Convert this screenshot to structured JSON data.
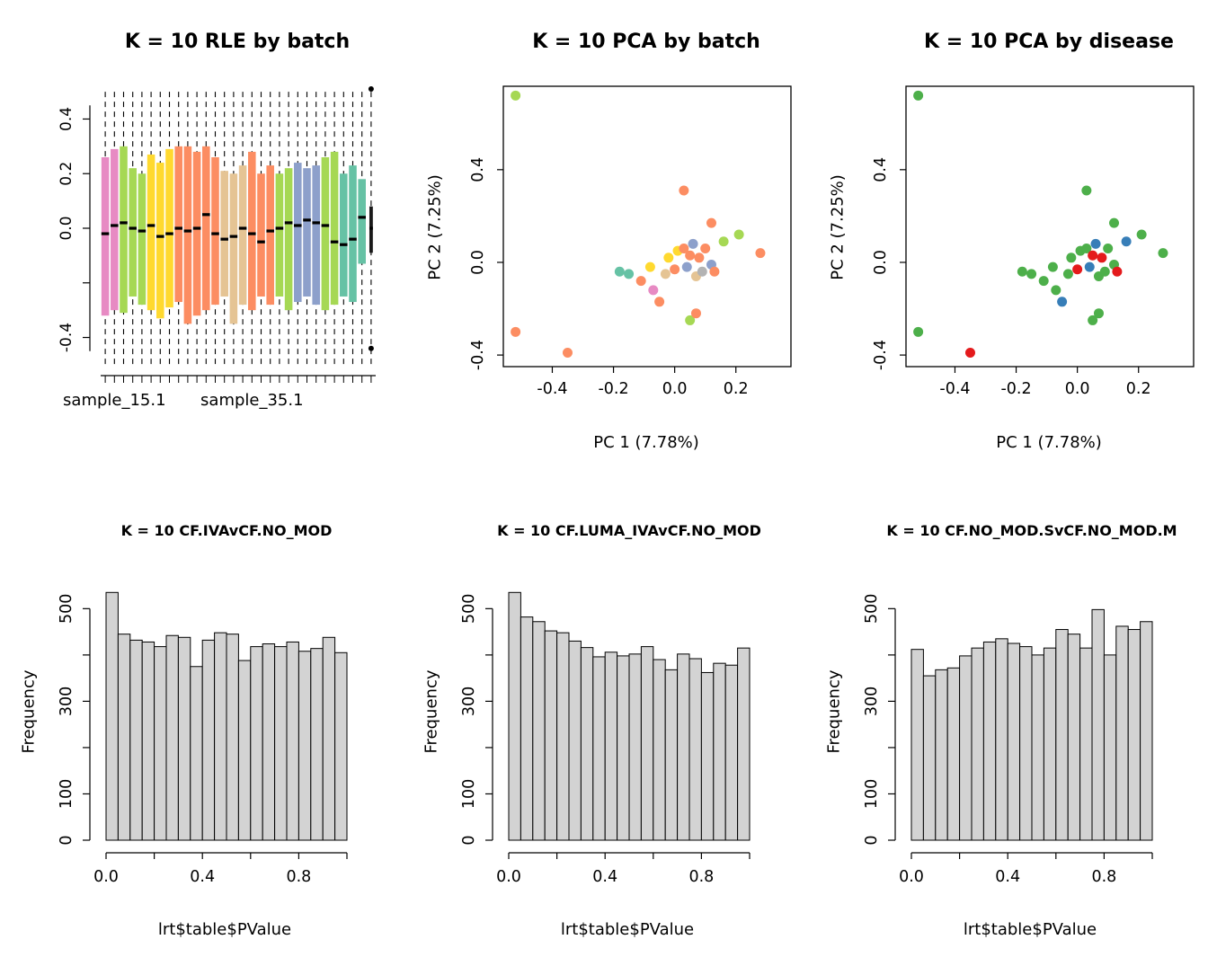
{
  "figure": {
    "background": "#ffffff",
    "histogram_bar_fill": "#d3d3d3",
    "histogram_bar_stroke": "#000000"
  },
  "pca_points": [
    {
      "x": -0.52,
      "y": 0.72,
      "batch": "#A6D854",
      "disease": "#4DAF4A"
    },
    {
      "x": -0.52,
      "y": -0.3,
      "batch": "#FC8D62",
      "disease": "#4DAF4A"
    },
    {
      "x": -0.35,
      "y": -0.39,
      "batch": "#FC8D62",
      "disease": "#E41A1C"
    },
    {
      "x": 0.03,
      "y": 0.31,
      "batch": "#FC8D62",
      "disease": "#4DAF4A"
    },
    {
      "x": 0.12,
      "y": 0.17,
      "batch": "#FC8D62",
      "disease": "#4DAF4A"
    },
    {
      "x": 0.21,
      "y": 0.12,
      "batch": "#A6D854",
      "disease": "#4DAF4A"
    },
    {
      "x": 0.28,
      "y": 0.04,
      "batch": "#FC8D62",
      "disease": "#4DAF4A"
    },
    {
      "x": 0.05,
      "y": -0.25,
      "batch": "#A6D854",
      "disease": "#4DAF4A"
    },
    {
      "x": -0.18,
      "y": -0.04,
      "batch": "#66C2A5",
      "disease": "#4DAF4A"
    },
    {
      "x": -0.15,
      "y": -0.05,
      "batch": "#66C2A5",
      "disease": "#4DAF4A"
    },
    {
      "x": -0.11,
      "y": -0.08,
      "batch": "#FC8D62",
      "disease": "#4DAF4A"
    },
    {
      "x": -0.08,
      "y": -0.02,
      "batch": "#FFD92F",
      "disease": "#4DAF4A"
    },
    {
      "x": -0.07,
      "y": -0.12,
      "batch": "#E78AC3",
      "disease": "#4DAF4A"
    },
    {
      "x": -0.05,
      "y": -0.17,
      "batch": "#FC8D62",
      "disease": "#377EB8"
    },
    {
      "x": -0.03,
      "y": -0.05,
      "batch": "#E5C494",
      "disease": "#4DAF4A"
    },
    {
      "x": -0.02,
      "y": 0.02,
      "batch": "#FFD92F",
      "disease": "#4DAF4A"
    },
    {
      "x": 0.0,
      "y": -0.03,
      "batch": "#FC8D62",
      "disease": "#E41A1C"
    },
    {
      "x": 0.01,
      "y": 0.05,
      "batch": "#FFD92F",
      "disease": "#4DAF4A"
    },
    {
      "x": 0.03,
      "y": 0.06,
      "batch": "#FC8D62",
      "disease": "#4DAF4A"
    },
    {
      "x": 0.04,
      "y": -0.02,
      "batch": "#8DA0CB",
      "disease": "#377EB8"
    },
    {
      "x": 0.05,
      "y": 0.03,
      "batch": "#FC8D62",
      "disease": "#E41A1C"
    },
    {
      "x": 0.06,
      "y": 0.08,
      "batch": "#8DA0CB",
      "disease": "#377EB8"
    },
    {
      "x": 0.07,
      "y": -0.06,
      "batch": "#E5C494",
      "disease": "#4DAF4A"
    },
    {
      "x": 0.08,
      "y": 0.02,
      "batch": "#FC8D62",
      "disease": "#E41A1C"
    },
    {
      "x": 0.09,
      "y": -0.04,
      "batch": "#B3B3B3",
      "disease": "#4DAF4A"
    },
    {
      "x": 0.1,
      "y": 0.06,
      "batch": "#FC8D62",
      "disease": "#4DAF4A"
    },
    {
      "x": 0.12,
      "y": -0.01,
      "batch": "#8DA0CB",
      "disease": "#4DAF4A"
    },
    {
      "x": 0.13,
      "y": -0.04,
      "batch": "#FC8D62",
      "disease": "#E41A1C"
    },
    {
      "x": 0.16,
      "y": 0.09,
      "batch": "#A6D854",
      "disease": "#377EB8"
    },
    {
      "x": 0.07,
      "y": -0.22,
      "batch": "#FC8D62",
      "disease": "#4DAF4A"
    }
  ],
  "chart_data": [
    {
      "type": "boxplot",
      "title": "K = 10 RLE by batch",
      "ylim": [
        -0.52,
        0.52
      ],
      "whisker": [
        -0.5,
        0.5
      ],
      "yticks": [
        {
          "v": -0.4,
          "label": "-0.4"
        },
        {
          "v": -0.2,
          "label": ""
        },
        {
          "v": 0.0,
          "label": "0.0"
        },
        {
          "v": 0.2,
          "label": "0.2"
        },
        {
          "v": 0.4,
          "label": "0.4"
        }
      ],
      "x_labels": [
        {
          "text": "sample_15.1",
          "box": 1
        },
        {
          "text": "sample_35.1",
          "box": 16
        }
      ],
      "boxes": [
        {
          "color": "#E78AC3",
          "q1": -0.32,
          "med": -0.02,
          "q3": 0.26
        },
        {
          "color": "#E78AC3",
          "q1": -0.3,
          "med": 0.01,
          "q3": 0.29
        },
        {
          "color": "#A6D854",
          "q1": -0.31,
          "med": 0.02,
          "q3": 0.3
        },
        {
          "color": "#A6D854",
          "q1": -0.25,
          "med": 0.0,
          "q3": 0.22
        },
        {
          "color": "#A6D854",
          "q1": -0.28,
          "med": -0.01,
          "q3": 0.2
        },
        {
          "color": "#FFD92F",
          "q1": -0.3,
          "med": 0.01,
          "q3": 0.27
        },
        {
          "color": "#FFD92F",
          "q1": -0.33,
          "med": -0.03,
          "q3": 0.24
        },
        {
          "color": "#FFD92F",
          "q1": -0.29,
          "med": -0.02,
          "q3": 0.29
        },
        {
          "color": "#FC8D62",
          "q1": -0.27,
          "med": 0.0,
          "q3": 0.3
        },
        {
          "color": "#FC8D62",
          "q1": -0.35,
          "med": -0.01,
          "q3": 0.3
        },
        {
          "color": "#FC8D62",
          "q1": -0.32,
          "med": 0.0,
          "q3": 0.28
        },
        {
          "color": "#FC8D62",
          "q1": -0.3,
          "med": 0.05,
          "q3": 0.3
        },
        {
          "color": "#FC8D62",
          "q1": -0.28,
          "med": -0.02,
          "q3": 0.26
        },
        {
          "color": "#E5C494",
          "q1": -0.25,
          "med": -0.04,
          "q3": 0.21
        },
        {
          "color": "#E5C494",
          "q1": -0.35,
          "med": -0.03,
          "q3": 0.2
        },
        {
          "color": "#E5C494",
          "q1": -0.28,
          "med": 0.0,
          "q3": 0.23
        },
        {
          "color": "#FC8D62",
          "q1": -0.3,
          "med": -0.02,
          "q3": 0.28
        },
        {
          "color": "#FC8D62",
          "q1": -0.25,
          "med": -0.05,
          "q3": 0.2
        },
        {
          "color": "#FC8D62",
          "q1": -0.28,
          "med": -0.01,
          "q3": 0.23
        },
        {
          "color": "#A6D854",
          "q1": -0.25,
          "med": 0.0,
          "q3": 0.2
        },
        {
          "color": "#A6D854",
          "q1": -0.3,
          "med": 0.02,
          "q3": 0.22
        },
        {
          "color": "#8DA0CB",
          "q1": -0.27,
          "med": 0.01,
          "q3": 0.24
        },
        {
          "color": "#8DA0CB",
          "q1": -0.25,
          "med": 0.03,
          "q3": 0.22
        },
        {
          "color": "#8DA0CB",
          "q1": -0.28,
          "med": 0.02,
          "q3": 0.23
        },
        {
          "color": "#A6D854",
          "q1": -0.3,
          "med": 0.01,
          "q3": 0.26
        },
        {
          "color": "#A6D854",
          "q1": -0.28,
          "med": -0.05,
          "q3": 0.28
        },
        {
          "color": "#66C2A5",
          "q1": -0.25,
          "med": -0.06,
          "q3": 0.2
        },
        {
          "color": "#66C2A5",
          "q1": -0.27,
          "med": -0.04,
          "q3": 0.23
        },
        {
          "color": "#66C2A5",
          "q1": -0.13,
          "med": 0.04,
          "q3": 0.18
        },
        {
          "color": "#1A1A1A",
          "q1": -0.09,
          "med": 0.0,
          "q3": 0.08,
          "narrow": true,
          "outliers": [
            0.51,
            -0.44
          ]
        }
      ]
    },
    {
      "type": "scatter",
      "title": "K = 10 PCA by batch",
      "xlabel": "PC 1 (7.78%)",
      "ylabel": "PC 2 (7.25%)",
      "xlim": [
        -0.56,
        0.38
      ],
      "ylim": [
        -0.45,
        0.76
      ],
      "xticks": [
        {
          "v": -0.4,
          "label": "-0.4"
        },
        {
          "v": -0.2,
          "label": "-0.2"
        },
        {
          "v": 0.0,
          "label": "0.0"
        },
        {
          "v": 0.2,
          "label": "0.2"
        }
      ],
      "yticks": [
        {
          "v": -0.4,
          "label": "-0.4"
        },
        {
          "v": 0.0,
          "label": "0.0"
        },
        {
          "v": 0.4,
          "label": "0.4"
        }
      ],
      "points_ref": "pca_points",
      "color_field": "batch"
    },
    {
      "type": "scatter",
      "title": "K = 10 PCA by disease",
      "xlabel": "PC 1 (7.78%)",
      "ylabel": "PC 2 (7.25%)",
      "xlim": [
        -0.56,
        0.38
      ],
      "ylim": [
        -0.45,
        0.76
      ],
      "xticks": [
        {
          "v": -0.4,
          "label": "-0.4"
        },
        {
          "v": -0.2,
          "label": "-0.2"
        },
        {
          "v": 0.0,
          "label": "0.0"
        },
        {
          "v": 0.2,
          "label": "0.2"
        }
      ],
      "yticks": [
        {
          "v": -0.4,
          "label": "-0.4"
        },
        {
          "v": 0.0,
          "label": "0.0"
        },
        {
          "v": 0.4,
          "label": "0.4"
        }
      ],
      "points_ref": "pca_points",
      "color_field": "disease"
    },
    {
      "type": "histogram",
      "title": "K = 10 CF.IVAvCF.NO_MOD",
      "xlabel": "lrt$table$PValue",
      "ylabel": "Frequency",
      "xlim": [
        0,
        1
      ],
      "ylim": [
        0,
        555
      ],
      "bin_start": 0,
      "bin_width": 0.05,
      "counts": [
        535,
        445,
        432,
        428,
        418,
        442,
        438,
        375,
        432,
        448,
        445,
        388,
        418,
        424,
        418,
        428,
        408,
        414,
        438,
        405
      ],
      "xticks": [
        {
          "v": 0.0,
          "label": "0.0"
        },
        {
          "v": 0.2,
          "label": ""
        },
        {
          "v": 0.4,
          "label": "0.4"
        },
        {
          "v": 0.6,
          "label": ""
        },
        {
          "v": 0.8,
          "label": "0.8"
        },
        {
          "v": 1.0,
          "label": ""
        }
      ],
      "yticks": [
        {
          "v": 0,
          "label": "0"
        },
        {
          "v": 100,
          "label": "100"
        },
        {
          "v": 200,
          "label": ""
        },
        {
          "v": 300,
          "label": "300"
        },
        {
          "v": 400,
          "label": ""
        },
        {
          "v": 500,
          "label": "500"
        }
      ]
    },
    {
      "type": "histogram",
      "title": "K = 10 CF.LUMA_IVAvCF.NO_MOD",
      "xlabel": "lrt$table$PValue",
      "ylabel": "Frequency",
      "xlim": [
        0,
        1
      ],
      "ylim": [
        0,
        555
      ],
      "bin_start": 0,
      "bin_width": 0.05,
      "counts": [
        535,
        482,
        472,
        452,
        448,
        430,
        416,
        396,
        406,
        398,
        402,
        418,
        390,
        368,
        402,
        392,
        362,
        382,
        378,
        415
      ],
      "xticks": [
        {
          "v": 0.0,
          "label": "0.0"
        },
        {
          "v": 0.2,
          "label": ""
        },
        {
          "v": 0.4,
          "label": "0.4"
        },
        {
          "v": 0.6,
          "label": ""
        },
        {
          "v": 0.8,
          "label": "0.8"
        },
        {
          "v": 1.0,
          "label": ""
        }
      ],
      "yticks": [
        {
          "v": 0,
          "label": "0"
        },
        {
          "v": 100,
          "label": "100"
        },
        {
          "v": 200,
          "label": ""
        },
        {
          "v": 300,
          "label": "300"
        },
        {
          "v": 400,
          "label": ""
        },
        {
          "v": 500,
          "label": "500"
        }
      ]
    },
    {
      "type": "histogram",
      "title": "K = 10 CF.NO_MOD.SvCF.NO_MOD.M",
      "xlabel": "lrt$table$PValue",
      "ylabel": "Frequency",
      "xlim": [
        0,
        1
      ],
      "ylim": [
        0,
        555
      ],
      "bin_start": 0,
      "bin_width": 0.05,
      "counts": [
        412,
        355,
        368,
        372,
        398,
        415,
        428,
        435,
        425,
        418,
        400,
        415,
        455,
        445,
        415,
        498,
        400,
        462,
        455,
        472
      ],
      "xticks": [
        {
          "v": 0.0,
          "label": "0.0"
        },
        {
          "v": 0.2,
          "label": ""
        },
        {
          "v": 0.4,
          "label": "0.4"
        },
        {
          "v": 0.6,
          "label": ""
        },
        {
          "v": 0.8,
          "label": "0.8"
        },
        {
          "v": 1.0,
          "label": ""
        }
      ],
      "yticks": [
        {
          "v": 0,
          "label": "0"
        },
        {
          "v": 100,
          "label": "100"
        },
        {
          "v": 200,
          "label": ""
        },
        {
          "v": 300,
          "label": "300"
        },
        {
          "v": 400,
          "label": ""
        },
        {
          "v": 500,
          "label": "500"
        }
      ]
    }
  ]
}
